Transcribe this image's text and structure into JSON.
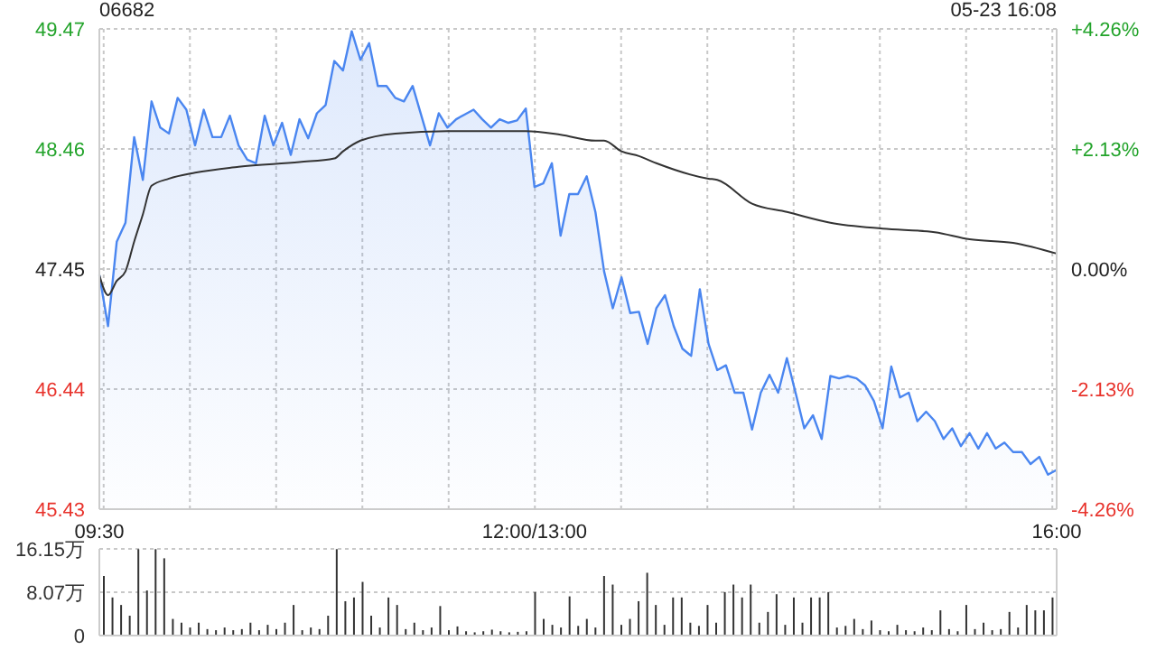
{
  "chart_data": [
    {
      "type": "area",
      "title": "06682",
      "subtitle": "05-23 16:08",
      "categories": [
        "09:30",
        null,
        null,
        null,
        null,
        null,
        null,
        null,
        null,
        null,
        null,
        null,
        null,
        null,
        null,
        null,
        null,
        null,
        null,
        null,
        null,
        null,
        null,
        null,
        null,
        null,
        null,
        null,
        null,
        null,
        null,
        null,
        null,
        null,
        null,
        null,
        null,
        null,
        null,
        null,
        null,
        null,
        null,
        null,
        null,
        null,
        null,
        null,
        null,
        null,
        "12:00/13:00",
        null,
        null,
        null,
        null,
        null,
        null,
        null,
        null,
        null,
        null,
        null,
        null,
        null,
        null,
        null,
        null,
        null,
        null,
        null,
        null,
        null,
        null,
        null,
        null,
        null,
        null,
        null,
        null,
        null,
        null,
        null,
        null,
        null,
        null,
        null,
        null,
        null,
        null,
        null,
        null,
        null,
        null,
        null,
        null,
        null,
        null,
        null,
        null,
        null,
        null,
        null,
        null,
        null,
        null,
        null,
        null,
        null,
        null,
        null,
        "16:00"
      ],
      "ylim": [
        45.43,
        49.47
      ],
      "yticks": [
        45.43,
        46.44,
        47.45,
        48.46,
        49.47
      ],
      "y2lim": [
        -4.26,
        4.26
      ],
      "y2ticks": [
        {
          "value": -4.26,
          "label": "-4.26%"
        },
        {
          "value": -2.13,
          "label": "-2.13%"
        },
        {
          "value": 0,
          "label": "0.00%"
        },
        {
          "value": 2.13,
          "label": "+2.13%"
        },
        {
          "value": 4.26,
          "label": "+4.26%"
        }
      ],
      "grid": true,
      "line_style": "solid",
      "marker": "none",
      "series": [
        {
          "type": "area",
          "color": "#4a86f0",
          "values": [
            47.4,
            46.97,
            47.68,
            47.84,
            48.56,
            48.2,
            48.86,
            48.64,
            48.59,
            48.89,
            48.79,
            48.49,
            48.79,
            48.56,
            48.56,
            48.74,
            48.49,
            48.37,
            48.34,
            48.74,
            48.49,
            48.68,
            48.41,
            48.71,
            48.55,
            48.76,
            48.83,
            49.2,
            49.12,
            49.45,
            49.21,
            49.35,
            48.99,
            48.99,
            48.89,
            48.86,
            48.99,
            48.74,
            48.49,
            48.76,
            48.64,
            48.71,
            48.75,
            48.79,
            48.71,
            48.64,
            48.71,
            48.68,
            48.7,
            48.8,
            48.14,
            48.17,
            48.34,
            47.73,
            48.08,
            48.08,
            48.23,
            47.93,
            47.43,
            47.12,
            47.38,
            47.08,
            47.09,
            46.82,
            47.12,
            47.23,
            46.97,
            46.78,
            46.72,
            47.28,
            46.82,
            46.6,
            46.64,
            46.41,
            46.41,
            46.1,
            46.41,
            46.56,
            46.41,
            46.7,
            46.41,
            46.11,
            46.22,
            46.02,
            46.55,
            46.53,
            46.55,
            46.53,
            46.47,
            46.34,
            46.11,
            46.63,
            46.37,
            46.41,
            46.17,
            46.25,
            46.17,
            46.02,
            46.11,
            45.96,
            46.07,
            45.94,
            46.07,
            45.94,
            45.99,
            45.91,
            45.91,
            45.81,
            45.87,
            45.72,
            45.76
          ]
        },
        {
          "type": "line",
          "color": "#333333",
          "values": [
            47.4,
            47.23,
            47.35,
            47.43,
            47.68,
            47.91,
            48.15,
            null,
            48.21,
            null,
            null,
            48.26,
            null,
            null,
            null,
            null,
            48.31,
            null,
            null,
            null,
            null,
            null,
            null,
            48.35,
            null,
            null,
            null,
            48.38,
            48.44,
            null,
            48.53,
            null,
            null,
            null,
            48.59,
            null,
            null,
            null,
            null,
            null,
            48.61,
            null,
            null,
            null,
            null,
            null,
            null,
            null,
            null,
            48.61,
            null,
            null,
            null,
            48.58,
            null,
            null,
            null,
            48.53,
            48.53,
            null,
            48.44,
            null,
            48.4,
            null,
            48.34,
            null,
            null,
            null,
            null,
            null,
            48.21,
            48.2,
            null,
            null,
            null,
            48.0,
            null,
            null,
            null,
            47.93,
            null,
            null,
            null,
            null,
            47.84,
            null,
            null,
            null,
            null,
            null,
            47.79,
            null,
            null,
            null,
            null,
            null,
            47.76,
            null,
            null,
            null,
            47.7,
            null,
            null,
            null,
            null,
            47.67,
            null,
            null,
            null,
            null,
            47.58
          ]
        }
      ]
    },
    {
      "type": "bar",
      "categories": [
        null,
        null,
        null,
        null,
        null,
        null,
        null,
        null,
        null,
        null,
        null,
        null,
        null,
        null,
        null,
        null,
        null,
        null,
        null,
        null,
        null,
        null,
        null,
        null,
        null,
        null,
        null,
        null,
        null,
        null,
        null,
        null,
        null,
        null,
        null,
        null,
        null,
        null,
        null,
        null,
        null,
        null,
        null,
        null,
        null,
        null,
        null,
        null,
        null,
        null,
        null,
        null,
        null,
        null,
        null,
        null,
        null,
        null,
        null,
        null,
        null,
        null,
        null,
        null,
        null,
        null,
        null,
        null,
        null,
        null,
        null,
        null,
        null,
        null,
        null,
        null,
        null,
        null,
        null,
        null,
        null,
        null,
        null,
        null,
        null,
        null,
        null,
        null,
        null,
        null,
        null,
        null,
        null,
        null,
        null,
        null,
        null,
        null,
        null,
        null,
        null,
        null,
        null,
        null,
        null,
        null,
        null,
        null,
        null,
        null,
        null
      ],
      "tick_labels": "y",
      "ylim": [
        0,
        16.15
      ],
      "yticks": [
        0,
        {
          "value": 8.07,
          "label": "8.07万"
        },
        {
          "value": 16.15,
          "label": "16.15万"
        }
      ],
      "grid": "y",
      "color": "#333333",
      "values": [
        11.1,
        7.1,
        5.7,
        3.7,
        16.1,
        8.4,
        16.1,
        14.4,
        3.1,
        2.4,
        1.5,
        2.4,
        1.2,
        1.0,
        1.5,
        1.0,
        1.2,
        2.4,
        1.0,
        2.0,
        1.2,
        2.4,
        5.7,
        1.0,
        1.5,
        1.2,
        3.7,
        16.1,
        6.4,
        7.1,
        10.0,
        3.7,
        1.5,
        7.1,
        5.7,
        1.2,
        2.4,
        1.0,
        1.5,
        5.5,
        1.0,
        1.7,
        0.8,
        0.6,
        0.8,
        1.1,
        0.8,
        0.6,
        0.7,
        0.8,
        8.1,
        3.1,
        2.0,
        1.5,
        7.3,
        1.8,
        3.1,
        1.5,
        11.1,
        9.5,
        2.0,
        3.1,
        6.4,
        11.7,
        5.7,
        2.0,
        7.1,
        7.1,
        2.4,
        1.8,
        5.7,
        2.4,
        8.1,
        9.5,
        7.1,
        9.5,
        2.4,
        4.4,
        7.7,
        2.0,
        7.1,
        2.4,
        7.1,
        7.1,
        8.1,
        1.5,
        1.8,
        3.1,
        1.2,
        2.8,
        1.0,
        0.8,
        2.0,
        1.0,
        0.8,
        1.5,
        1.0,
        4.7,
        1.2,
        0.8,
        5.7,
        1.2,
        2.4,
        1.0,
        1.2,
        4.4,
        1.5,
        5.7,
        4.7,
        4.7,
        7.1
      ]
    }
  ]
}
